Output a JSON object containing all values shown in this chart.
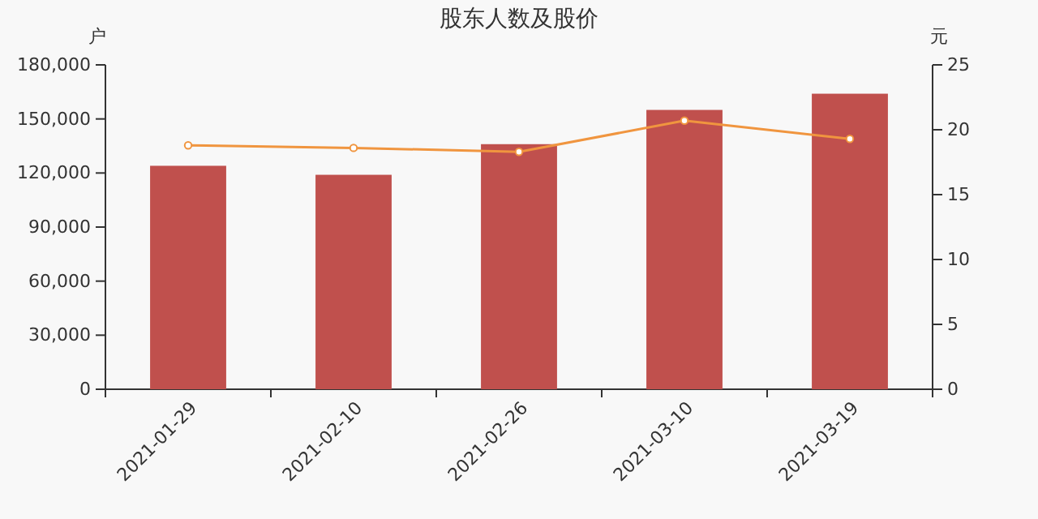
{
  "chart_data": {
    "type": "bar",
    "title": "股东人数及股价",
    "ylabel": "户",
    "y2label": "元",
    "categories": [
      "2021-01-29",
      "2021-02-10",
      "2021-02-26",
      "2021-03-10",
      "2021-03-19"
    ],
    "series": [
      {
        "color": "#c0504d",
        "values": [
          124000,
          119000,
          136000,
          155000,
          164000
        ]
      },
      {
        "type": "line",
        "axis": "y2",
        "color": "#f0953f",
        "values": [
          18.8,
          18.6,
          18.3,
          20.7,
          19.3
        ]
      }
    ],
    "ylim": [
      0,
      180000
    ],
    "yticks": [
      {
        "value": 0,
        "label": "0"
      },
      {
        "value": 30000,
        "label": "30,000"
      },
      {
        "value": 60000,
        "label": "60,000"
      },
      {
        "value": 90000,
        "label": "90,000"
      },
      {
        "value": 120000,
        "label": "120,000"
      },
      {
        "value": 150000,
        "label": "150,000"
      },
      {
        "value": 180000,
        "label": "180,000"
      }
    ],
    "y2lim": [
      0,
      25
    ],
    "y2ticks": [
      0,
      5,
      10,
      15,
      20,
      25
    ],
    "grid": false,
    "marker": "circle"
  }
}
